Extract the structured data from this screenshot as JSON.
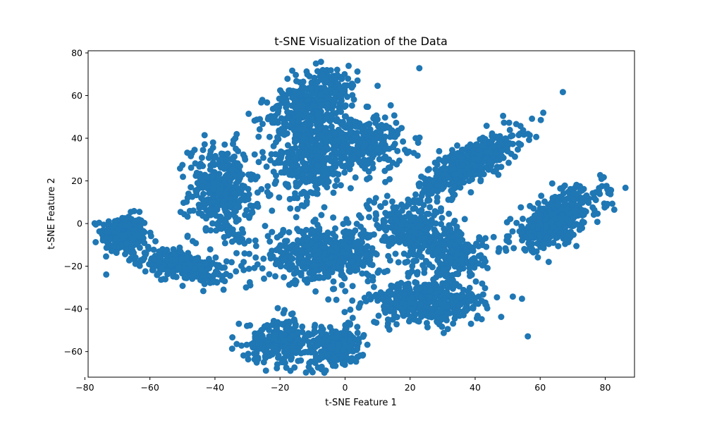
{
  "chart_data": {
    "type": "scatter",
    "title": "t-SNE Visualization of the Data",
    "xlabel": "t-SNE Feature 1",
    "ylabel": "t-SNE Feature 2",
    "xlim": [
      -79,
      89
    ],
    "ylim": [
      -72,
      81
    ],
    "xticks": [
      -80,
      -60,
      -40,
      -20,
      0,
      20,
      40,
      60,
      80
    ],
    "yticks": [
      -60,
      -40,
      -20,
      0,
      20,
      40,
      60,
      80
    ],
    "grid": false,
    "color": "#1f77b4",
    "clusters": [
      {
        "cx": -68,
        "cy": -5,
        "sx": 3.5,
        "sy": 4.5,
        "n": 260
      },
      {
        "cx": -50,
        "cy": -20,
        "sx": 7,
        "sy": 4,
        "n": 260,
        "rho": -0.55
      },
      {
        "cx": -38,
        "cy": 15,
        "sx": 5,
        "sy": 11,
        "n": 360
      },
      {
        "cx": -14,
        "cy": 50,
        "sx": 5,
        "sy": 6,
        "n": 200
      },
      {
        "cx": -6,
        "cy": 62,
        "sx": 5,
        "sy": 6,
        "n": 200
      },
      {
        "cx": -12,
        "cy": 28,
        "sx": 6,
        "sy": 9,
        "n": 260
      },
      {
        "cx": 2,
        "cy": 38,
        "sx": 8,
        "sy": 7,
        "n": 380
      },
      {
        "cx": 38,
        "cy": 28,
        "sx": 8,
        "sy": 8,
        "n": 460,
        "rho": 0.8
      },
      {
        "cx": 65,
        "cy": 2,
        "sx": 7,
        "sy": 7,
        "n": 460,
        "rho": 0.65
      },
      {
        "cx": -7,
        "cy": -15,
        "sx": 9,
        "sy": 6,
        "n": 480
      },
      {
        "cx": 22,
        "cy": -5,
        "sx": 7,
        "sy": 8,
        "n": 320,
        "rho": -0.3
      },
      {
        "cx": 35,
        "cy": -15,
        "sx": 4,
        "sy": 5,
        "n": 160
      },
      {
        "cx": 25,
        "cy": -37,
        "sx": 9,
        "sy": 5,
        "n": 400
      },
      {
        "cx": -20,
        "cy": -55,
        "sx": 5,
        "sy": 5,
        "n": 260
      },
      {
        "cx": -3,
        "cy": -58,
        "sx": 4,
        "sy": 5,
        "n": 240
      },
      {
        "cx": 0,
        "cy": 0,
        "sx": 30,
        "sy": 30,
        "n": 40
      }
    ]
  }
}
